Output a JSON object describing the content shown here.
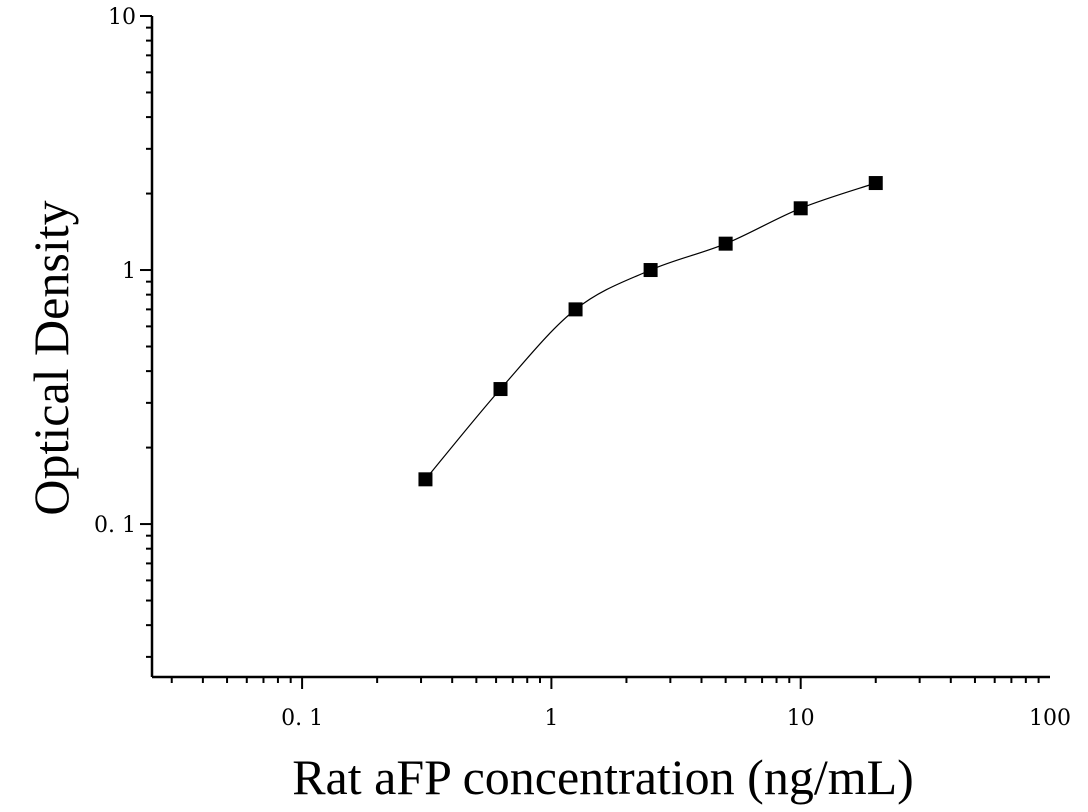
{
  "chart_data": {
    "type": "scatter",
    "title": "",
    "xlabel": "Rat aFP concentration (ng/mL)",
    "ylabel": "Optical Density",
    "x_scale": "log",
    "y_scale": "log",
    "xlim": [
      0.025,
      100
    ],
    "ylim": [
      0.025,
      10
    ],
    "x_ticks": [
      {
        "value": 0.1,
        "label": "0. 1"
      },
      {
        "value": 1,
        "label": "1"
      },
      {
        "value": 10,
        "label": "10"
      },
      {
        "value": 100,
        "label": "100"
      }
    ],
    "y_ticks": [
      {
        "value": 0.1,
        "label": "0. 1"
      },
      {
        "value": 1,
        "label": "1"
      },
      {
        "value": 10,
        "label": "10"
      }
    ],
    "grid": false,
    "series": [
      {
        "marker": "square",
        "color": "#000000",
        "points": [
          {
            "x": 0.3125,
            "y": 0.15
          },
          {
            "x": 0.625,
            "y": 0.34
          },
          {
            "x": 1.25,
            "y": 0.7
          },
          {
            "x": 2.5,
            "y": 1.0
          },
          {
            "x": 5,
            "y": 1.27
          },
          {
            "x": 10,
            "y": 1.75
          },
          {
            "x": 20,
            "y": 2.2
          }
        ]
      }
    ],
    "fit_curve": {
      "type": "smooth",
      "color": "#000000"
    }
  }
}
